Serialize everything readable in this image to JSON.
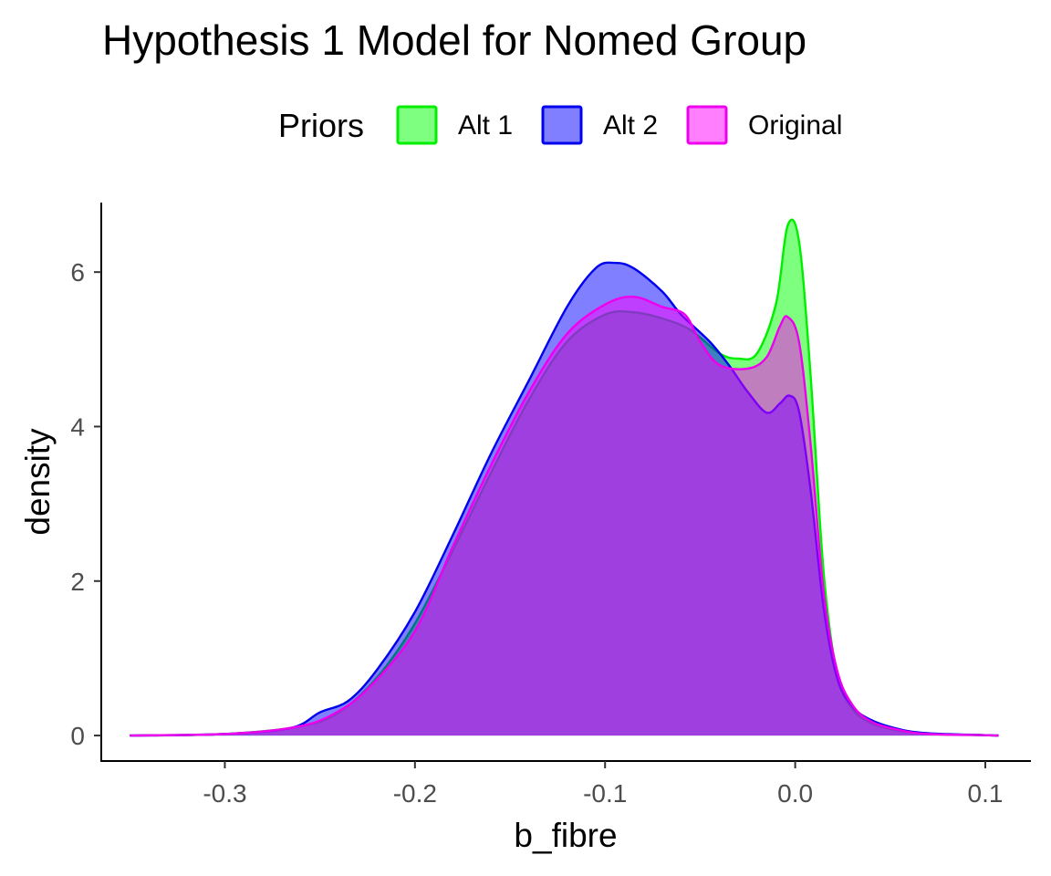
{
  "chart_data": {
    "type": "area",
    "title": "Hypothesis 1 Model for Nomed Group",
    "xlabel": "b_fibre",
    "ylabel": "density",
    "xlim": [
      -0.365,
      0.124
    ],
    "ylim": [
      -0.33,
      6.9
    ],
    "x_ticks": [
      -0.3,
      -0.2,
      -0.1,
      0.0,
      0.1
    ],
    "x_tick_labels": [
      "-0.3",
      "-0.2",
      "-0.1",
      "0.0",
      "0.1"
    ],
    "y_ticks": [
      0,
      2,
      4,
      6
    ],
    "y_tick_labels": [
      "0",
      "2",
      "4",
      "6"
    ],
    "grid": false,
    "legend": {
      "title": "Priors",
      "position": "top"
    },
    "series": [
      {
        "name": "Alt 1",
        "fill": "#00ff00",
        "stroke": "#00ee00",
        "points": [
          [
            -0.35,
            0
          ],
          [
            -0.3,
            0.02
          ],
          [
            -0.26,
            0.12
          ],
          [
            -0.24,
            0.3
          ],
          [
            -0.22,
            0.75
          ],
          [
            -0.2,
            1.45
          ],
          [
            -0.18,
            2.4
          ],
          [
            -0.16,
            3.4
          ],
          [
            -0.14,
            4.35
          ],
          [
            -0.12,
            5.1
          ],
          [
            -0.1,
            5.45
          ],
          [
            -0.085,
            5.48
          ],
          [
            -0.07,
            5.4
          ],
          [
            -0.055,
            5.25
          ],
          [
            -0.04,
            4.95
          ],
          [
            -0.03,
            4.88
          ],
          [
            -0.02,
            4.95
          ],
          [
            -0.01,
            5.6
          ],
          [
            -0.004,
            6.6
          ],
          [
            0.002,
            6.4
          ],
          [
            0.008,
            4.7
          ],
          [
            0.015,
            2.1
          ],
          [
            0.022,
            0.8
          ],
          [
            0.03,
            0.35
          ],
          [
            0.04,
            0.16
          ],
          [
            0.055,
            0.06
          ],
          [
            0.07,
            0.02
          ],
          [
            0.1,
            0.005
          ],
          [
            0.107,
            0
          ]
        ]
      },
      {
        "name": "Alt 2",
        "fill": "#0000ff",
        "stroke": "#0000ee",
        "points": [
          [
            -0.35,
            0
          ],
          [
            -0.3,
            0.02
          ],
          [
            -0.265,
            0.1
          ],
          [
            -0.25,
            0.3
          ],
          [
            -0.235,
            0.45
          ],
          [
            -0.22,
            0.85
          ],
          [
            -0.2,
            1.6
          ],
          [
            -0.18,
            2.6
          ],
          [
            -0.16,
            3.65
          ],
          [
            -0.14,
            4.6
          ],
          [
            -0.12,
            5.55
          ],
          [
            -0.105,
            6.05
          ],
          [
            -0.095,
            6.12
          ],
          [
            -0.085,
            6.05
          ],
          [
            -0.07,
            5.75
          ],
          [
            -0.06,
            5.45
          ],
          [
            -0.045,
            5.1
          ],
          [
            -0.035,
            4.8
          ],
          [
            -0.025,
            4.45
          ],
          [
            -0.015,
            4.18
          ],
          [
            -0.008,
            4.3
          ],
          [
            -0.003,
            4.4
          ],
          [
            0.002,
            4.2
          ],
          [
            0.008,
            3.2
          ],
          [
            0.015,
            1.65
          ],
          [
            0.022,
            0.75
          ],
          [
            0.03,
            0.38
          ],
          [
            0.04,
            0.2
          ],
          [
            0.055,
            0.08
          ],
          [
            0.07,
            0.03
          ],
          [
            0.1,
            0.005
          ],
          [
            0.107,
            0
          ]
        ]
      },
      {
        "name": "Original",
        "fill": "#ff00ff",
        "stroke": "#ee00ee",
        "points": [
          [
            -0.35,
            0
          ],
          [
            -0.3,
            0.02
          ],
          [
            -0.265,
            0.1
          ],
          [
            -0.245,
            0.25
          ],
          [
            -0.225,
            0.6
          ],
          [
            -0.2,
            1.35
          ],
          [
            -0.18,
            2.45
          ],
          [
            -0.16,
            3.5
          ],
          [
            -0.14,
            4.45
          ],
          [
            -0.12,
            5.2
          ],
          [
            -0.1,
            5.58
          ],
          [
            -0.085,
            5.68
          ],
          [
            -0.07,
            5.55
          ],
          [
            -0.058,
            5.45
          ],
          [
            -0.05,
            5.1
          ],
          [
            -0.04,
            4.8
          ],
          [
            -0.025,
            4.75
          ],
          [
            -0.015,
            4.9
          ],
          [
            -0.008,
            5.3
          ],
          [
            -0.004,
            5.42
          ],
          [
            0.002,
            5.1
          ],
          [
            0.008,
            3.8
          ],
          [
            0.015,
            1.85
          ],
          [
            0.022,
            0.85
          ],
          [
            0.03,
            0.4
          ],
          [
            0.04,
            0.18
          ],
          [
            0.055,
            0.07
          ],
          [
            0.07,
            0.02
          ],
          [
            0.1,
            0.005
          ],
          [
            0.107,
            0
          ]
        ]
      }
    ]
  }
}
